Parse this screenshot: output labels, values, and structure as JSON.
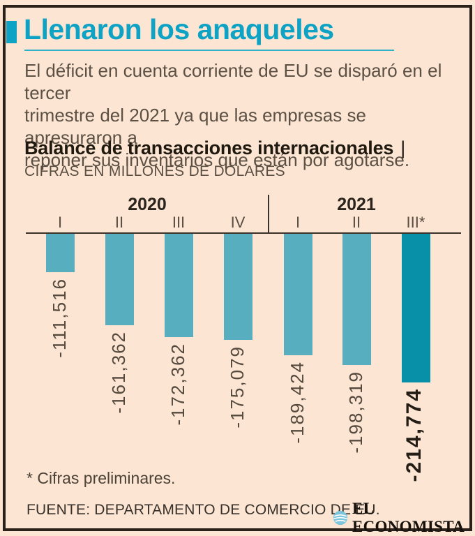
{
  "header": {
    "title": "Llenaron los anaqueles",
    "intro_lines": [
      "El déficit en cuenta corriente de EU se disparó en el tercer",
      "trimestre del 2021 ya que las empresas se apresuraron a",
      "reponer sus inventarios que están por agotarse."
    ]
  },
  "chart_data": {
    "type": "bar",
    "title": "Balance de transacciones internacionales",
    "title_separator": "|",
    "subtitle": "CIFRAS EN MILLONES DE DÓLARES",
    "year_groups": [
      {
        "label": "2020",
        "quarter_indexes": [
          0,
          1,
          2,
          3
        ]
      },
      {
        "label": "2021",
        "quarter_indexes": [
          4,
          5,
          6
        ]
      }
    ],
    "categories": [
      "I",
      "II",
      "III",
      "IV",
      "I",
      "II",
      "III*"
    ],
    "values": [
      -111516,
      -161362,
      -172362,
      -175079,
      -189424,
      -198319,
      -214774
    ],
    "values_formatted": [
      "-111,516",
      "-161,362",
      "-172,362",
      "-175,079",
      "-189,424",
      "-198,319",
      "-214,774"
    ],
    "highlight_index": 6,
    "ylabel": "Millones de dólares",
    "bar_color": "#57aebe",
    "highlight_color": "#0890a8",
    "grid": false,
    "legend": false
  },
  "footer": {
    "footnote": "* Cifras preliminares.",
    "source": "FUENTE: DEPARTAMENTO DE COMERCIO DE EU.",
    "brand": "EL ECONOMISTA"
  },
  "colors": {
    "background": "#fce6d3",
    "frame": "#2b211b",
    "accent_teal": "#0ea3c4",
    "bar_teal": "#57aebe",
    "bar_highlight_teal": "#0890a8",
    "ink": "#20190f",
    "body_text": "#5c5045",
    "logo_circle": "#7cc5da"
  }
}
